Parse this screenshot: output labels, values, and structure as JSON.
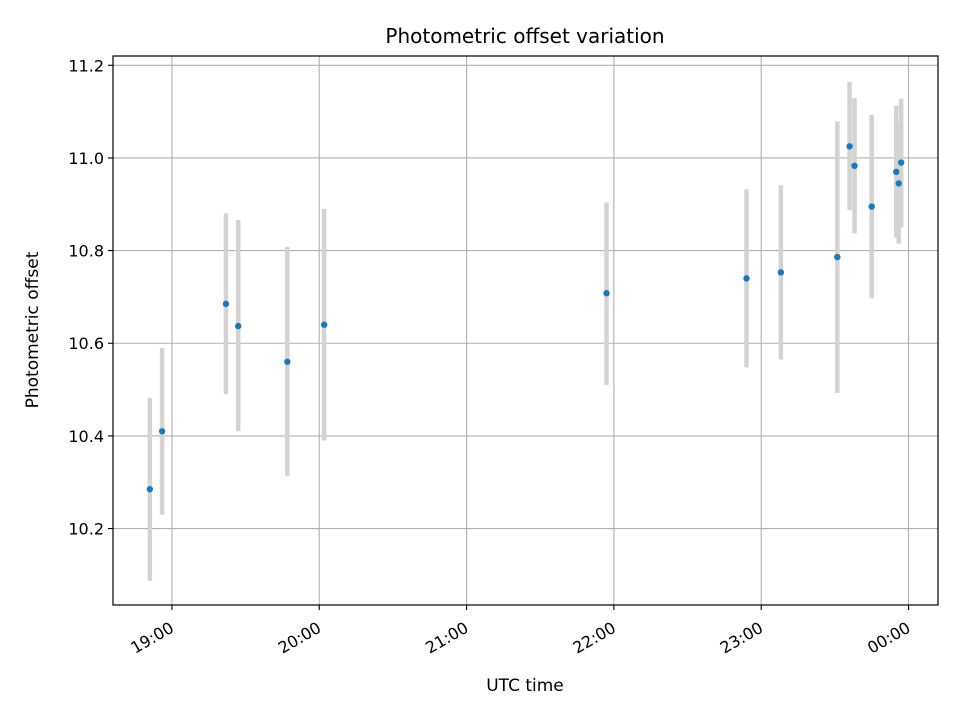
{
  "chart_data": {
    "type": "scatter",
    "title": "Photometric offset variation",
    "xlabel": "UTC time",
    "ylabel": "Photometric offset",
    "x_axis_kind": "time",
    "xlim": [
      "18:36",
      "00:12"
    ],
    "ylim": [
      10.035,
      11.22
    ],
    "grid": true,
    "x_ticks": [
      "19:00",
      "20:00",
      "21:00",
      "22:00",
      "23:00",
      "00:00"
    ],
    "y_ticks": [
      "10.2",
      "10.4",
      "10.6",
      "10.8",
      "11.0",
      "11.2"
    ],
    "series": [
      {
        "style": "points with vertical error bars",
        "point_color": "#1f77b4",
        "errorbar_color": "#d3d3d3",
        "points": [
          {
            "x": "18:51",
            "y": 10.285,
            "y_low": 10.087,
            "y_high": 10.482
          },
          {
            "x": "18:56",
            "y": 10.41,
            "y_low": 10.23,
            "y_high": 10.59
          },
          {
            "x": "19:22",
            "y": 10.685,
            "y_low": 10.49,
            "y_high": 10.88
          },
          {
            "x": "19:27",
            "y": 10.637,
            "y_low": 10.41,
            "y_high": 10.866
          },
          {
            "x": "19:47",
            "y": 10.56,
            "y_low": 10.313,
            "y_high": 10.808
          },
          {
            "x": "20:02",
            "y": 10.64,
            "y_low": 10.39,
            "y_high": 10.89
          },
          {
            "x": "21:57",
            "y": 10.708,
            "y_low": 10.51,
            "y_high": 10.904
          },
          {
            "x": "22:54",
            "y": 10.74,
            "y_low": 10.548,
            "y_high": 10.932
          },
          {
            "x": "23:08",
            "y": 10.753,
            "y_low": 10.565,
            "y_high": 10.941
          },
          {
            "x": "23:31",
            "y": 10.786,
            "y_low": 10.493,
            "y_high": 11.079
          },
          {
            "x": "23:36",
            "y": 11.025,
            "y_low": 10.887,
            "y_high": 11.164
          },
          {
            "x": "23:38",
            "y": 10.983,
            "y_low": 10.837,
            "y_high": 11.129
          },
          {
            "x": "23:45",
            "y": 10.895,
            "y_low": 10.697,
            "y_high": 11.093
          },
          {
            "x": "23:55",
            "y": 10.97,
            "y_low": 10.828,
            "y_high": 11.113
          },
          {
            "x": "23:56",
            "y": 10.945,
            "y_low": 10.815,
            "y_high": 11.075
          },
          {
            "x": "23:57",
            "y": 10.99,
            "y_low": 10.85,
            "y_high": 11.128
          }
        ]
      }
    ]
  }
}
